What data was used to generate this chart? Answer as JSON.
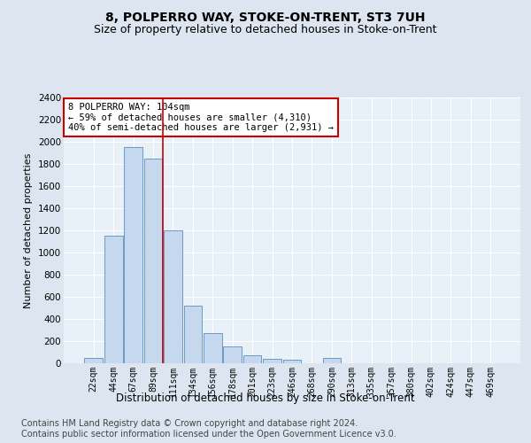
{
  "title": "8, POLPERRO WAY, STOKE-ON-TRENT, ST3 7UH",
  "subtitle": "Size of property relative to detached houses in Stoke-on-Trent",
  "xlabel": "Distribution of detached houses by size in Stoke-on-Trent",
  "ylabel": "Number of detached properties",
  "categories": [
    "22sqm",
    "44sqm",
    "67sqm",
    "89sqm",
    "111sqm",
    "134sqm",
    "156sqm",
    "178sqm",
    "201sqm",
    "223sqm",
    "246sqm",
    "268sqm",
    "290sqm",
    "313sqm",
    "335sqm",
    "357sqm",
    "380sqm",
    "402sqm",
    "424sqm",
    "447sqm",
    "469sqm"
  ],
  "values": [
    50,
    1150,
    1950,
    1850,
    1200,
    520,
    270,
    150,
    75,
    40,
    30,
    0,
    50,
    0,
    0,
    0,
    0,
    0,
    0,
    0,
    0
  ],
  "bar_color": "#c5d8ee",
  "bar_edge_color": "#5b8fbf",
  "vline_x": 3.5,
  "vline_color": "#cc0000",
  "annotation_text": "8 POLPERRO WAY: 104sqm\n← 59% of detached houses are smaller (4,310)\n40% of semi-detached houses are larger (2,931) →",
  "annotation_box_color": "#ffffff",
  "annotation_box_edge_color": "#cc0000",
  "ylim": [
    0,
    2400
  ],
  "yticks": [
    0,
    200,
    400,
    600,
    800,
    1000,
    1200,
    1400,
    1600,
    1800,
    2000,
    2200,
    2400
  ],
  "footer": "Contains HM Land Registry data © Crown copyright and database right 2024.\nContains public sector information licensed under the Open Government Licence v3.0.",
  "bg_color": "#dde6f0",
  "plot_bg_color": "#e8f0f8",
  "title_fontsize": 10,
  "subtitle_fontsize": 9,
  "footer_fontsize": 7
}
